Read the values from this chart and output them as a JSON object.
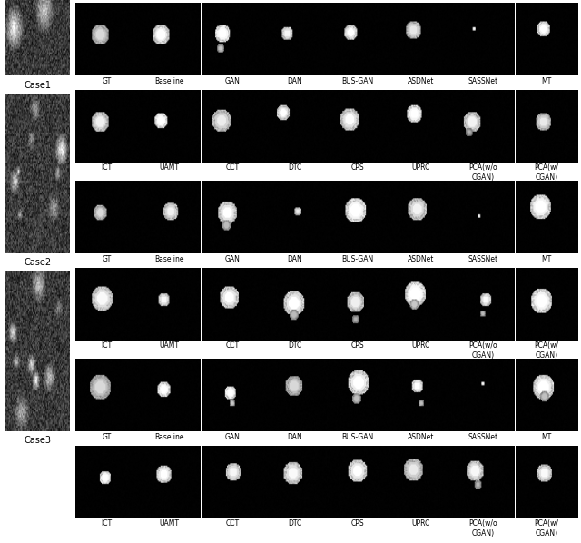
{
  "background_color": "#ffffff",
  "fig_width": 6.4,
  "fig_height": 5.98,
  "n_cases": 3,
  "n_cols": 8,
  "row1_labels": [
    "GT",
    "Baseline",
    "GAN",
    "DAN",
    "BUS-GAN",
    "ASDNet",
    "SASSNet",
    "MT"
  ],
  "row2_labels": [
    "ICT",
    "UAMT",
    "CCT",
    "DTC",
    "CPS",
    "UPRC",
    "PCA(w/o\nCGAN)",
    "PCA(w/\nCGAN)"
  ],
  "case_labels": [
    "Case1",
    "Case2",
    "Case3"
  ],
  "label_fontsize": 5.5,
  "case_label_fontsize": 7.0,
  "text_color": "#000000"
}
